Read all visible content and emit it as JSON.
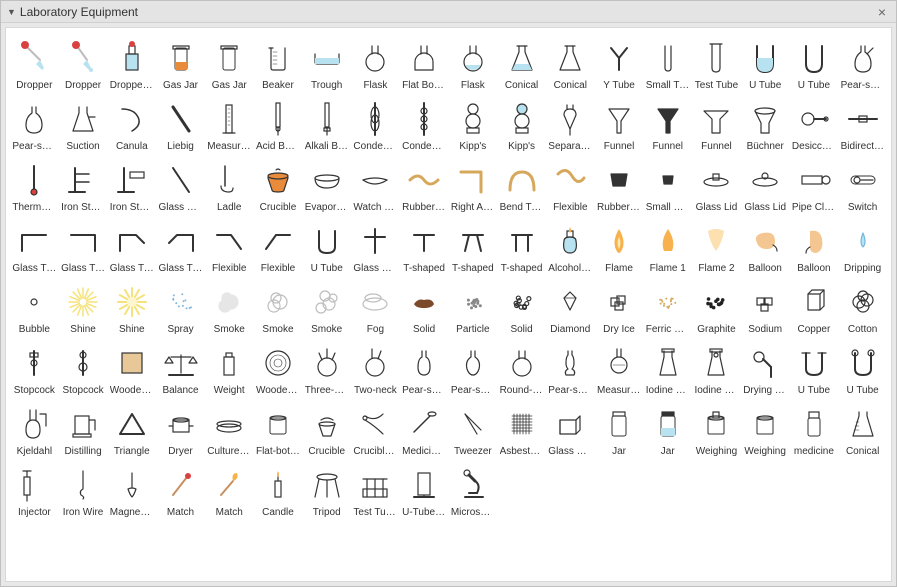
{
  "panel": {
    "title": "Laboratory Equipment"
  },
  "colors": {
    "stroke": "#333333",
    "liquid": "#b8e2f0",
    "orange": "#e88c3c",
    "red": "#d94141",
    "flame": "#f7b24d",
    "brown": "#7a4a2a",
    "tan": "#d6a85c",
    "gray": "#bdbdbd",
    "lightgray": "#e6e6e6",
    "yellow": "#f6e27a"
  },
  "items": [
    {
      "label": "Dropper",
      "icon": "dropper-red"
    },
    {
      "label": "Dropper",
      "icon": "dropper-red2"
    },
    {
      "label": "Dropper Bottle",
      "icon": "dropper-bottle"
    },
    {
      "label": "Gas Jar",
      "icon": "gas-jar"
    },
    {
      "label": "Gas Jar",
      "icon": "gas-jar-empty"
    },
    {
      "label": "Beaker",
      "icon": "beaker"
    },
    {
      "label": "Trough",
      "icon": "trough"
    },
    {
      "label": "Flask",
      "icon": "flask-round"
    },
    {
      "label": "Flat Bottom",
      "icon": "flask-flat"
    },
    {
      "label": "Flask",
      "icon": "flask-round-liq"
    },
    {
      "label": "Conical",
      "icon": "conical"
    },
    {
      "label": "Conical",
      "icon": "conical2"
    },
    {
      "label": "Y Tube",
      "icon": "y-tube"
    },
    {
      "label": "Small Tube",
      "icon": "small-tube"
    },
    {
      "label": "Test Tube",
      "icon": "test-tube"
    },
    {
      "label": "U Tube",
      "icon": "u-tube-liq"
    },
    {
      "label": "U Tube",
      "icon": "u-tube"
    },
    {
      "label": "Pear-shaped",
      "icon": "pear"
    },
    {
      "label": "Pear-shaped",
      "icon": "pear2"
    },
    {
      "label": "Suction",
      "icon": "suction"
    },
    {
      "label": "Canula",
      "icon": "canula"
    },
    {
      "label": "Liebig",
      "icon": "liebig"
    },
    {
      "label": "Measuring",
      "icon": "measuring"
    },
    {
      "label": "Acid Burette",
      "icon": "burette"
    },
    {
      "label": "Alkali Burette",
      "icon": "burette2"
    },
    {
      "label": "Condenser",
      "icon": "condenser"
    },
    {
      "label": "Condenser",
      "icon": "condenser2"
    },
    {
      "label": "Kipp's",
      "icon": "kipps"
    },
    {
      "label": "Kipp's",
      "icon": "kipps2"
    },
    {
      "label": "Separating",
      "icon": "separating"
    },
    {
      "label": "Funnel",
      "icon": "funnel"
    },
    {
      "label": "Funnel",
      "icon": "funnel-fill"
    },
    {
      "label": "Funnel",
      "icon": "funnel-wide"
    },
    {
      "label": "Büchner",
      "icon": "buchner"
    },
    {
      "label": "Desiccator",
      "icon": "desiccator"
    },
    {
      "label": "Bidirectional",
      "icon": "bidirectional"
    },
    {
      "label": "Thermometer",
      "icon": "thermometer"
    },
    {
      "label": "Iron Stand",
      "icon": "iron-stand"
    },
    {
      "label": "Iron Stand",
      "icon": "iron-stand2"
    },
    {
      "label": "Glass Rod",
      "icon": "glass-rod"
    },
    {
      "label": "Ladle",
      "icon": "ladle"
    },
    {
      "label": "Crucible",
      "icon": "crucible"
    },
    {
      "label": "Evaporating",
      "icon": "evaporating"
    },
    {
      "label": "Watch Glass",
      "icon": "watch-glass"
    },
    {
      "label": "Rubber Tube",
      "icon": "rubber-tube"
    },
    {
      "label": "Right Angle",
      "icon": "right-angle"
    },
    {
      "label": "Bend Tube",
      "icon": "bend-tube"
    },
    {
      "label": "Flexible",
      "icon": "flexible-tube"
    },
    {
      "label": "Rubber Bung",
      "icon": "bung"
    },
    {
      "label": "Small Bung",
      "icon": "bung-small"
    },
    {
      "label": "Glass Lid",
      "icon": "lid"
    },
    {
      "label": "Glass Lid",
      "icon": "lid2"
    },
    {
      "label": "Pipe Clamp",
      "icon": "pipe-clamp"
    },
    {
      "label": "Switch",
      "icon": "switch"
    },
    {
      "label": "Glass Tube",
      "icon": "glass-tube1"
    },
    {
      "label": "Glass Tube",
      "icon": "glass-tube2"
    },
    {
      "label": "Glass Tube",
      "icon": "glass-tube3"
    },
    {
      "label": "Glass Tube",
      "icon": "glass-tube4"
    },
    {
      "label": "Flexible",
      "icon": "flex-r"
    },
    {
      "label": "Flexible",
      "icon": "flex-l"
    },
    {
      "label": "U Tube",
      "icon": "u-tube2"
    },
    {
      "label": "Glass Conn",
      "icon": "glass-conn"
    },
    {
      "label": "T-shaped",
      "icon": "t-shaped"
    },
    {
      "label": "T-shaped",
      "icon": "t-shaped2"
    },
    {
      "label": "T-shaped",
      "icon": "t-shaped3"
    },
    {
      "label": "Alcohol Lamp",
      "icon": "alcohol-lamp"
    },
    {
      "label": "Flame",
      "icon": "flame"
    },
    {
      "label": "Flame 1",
      "icon": "flame1"
    },
    {
      "label": "Flame 2",
      "icon": "flame2"
    },
    {
      "label": "Balloon",
      "icon": "balloon"
    },
    {
      "label": "Balloon",
      "icon": "balloon2"
    },
    {
      "label": "Dripping",
      "icon": "drip"
    },
    {
      "label": "Bubble",
      "icon": "bubble"
    },
    {
      "label": "Shine",
      "icon": "shine"
    },
    {
      "label": "Shine",
      "icon": "shine2"
    },
    {
      "label": "Spray",
      "icon": "spray"
    },
    {
      "label": "Smoke",
      "icon": "smoke"
    },
    {
      "label": "Smoke",
      "icon": "smoke2"
    },
    {
      "label": "Smoke",
      "icon": "smoke3"
    },
    {
      "label": "Fog",
      "icon": "fog"
    },
    {
      "label": "Solid",
      "icon": "solid"
    },
    {
      "label": "Particle",
      "icon": "particle"
    },
    {
      "label": "Solid",
      "icon": "solid2"
    },
    {
      "label": "Diamond",
      "icon": "diamond"
    },
    {
      "label": "Dry Ice",
      "icon": "dry-ice"
    },
    {
      "label": "Ferric Oxide",
      "icon": "ferric"
    },
    {
      "label": "Graphite",
      "icon": "graphite"
    },
    {
      "label": "Sodium",
      "icon": "sodium"
    },
    {
      "label": "Copper",
      "icon": "copper"
    },
    {
      "label": "Cotton",
      "icon": "cotton"
    },
    {
      "label": "Stopcock",
      "icon": "stopcock"
    },
    {
      "label": "Stopcock",
      "icon": "stopcock2"
    },
    {
      "label": "Wooden Block",
      "icon": "wood-block"
    },
    {
      "label": "Balance",
      "icon": "balance"
    },
    {
      "label": "Weight",
      "icon": "weight"
    },
    {
      "label": "Wooden Disc",
      "icon": "wood-disc"
    },
    {
      "label": "Three-neck",
      "icon": "three-neck"
    },
    {
      "label": "Two-neck",
      "icon": "two-neck"
    },
    {
      "label": "Pear-shaped",
      "icon": "pear-neck"
    },
    {
      "label": "Pear-shaped",
      "icon": "pear-neck2"
    },
    {
      "label": "Round-bottom",
      "icon": "round-bottom"
    },
    {
      "label": "Pear-shaped",
      "icon": "pear-neck3"
    },
    {
      "label": "Measuring",
      "icon": "measuring2"
    },
    {
      "label": "Iodine Flask",
      "icon": "iodine"
    },
    {
      "label": "Iodine Flask",
      "icon": "iodine2"
    },
    {
      "label": "Drying Tube",
      "icon": "drying"
    },
    {
      "label": "U Tube",
      "icon": "u-tube3"
    },
    {
      "label": "U Tube",
      "icon": "u-tube4"
    },
    {
      "label": "Kjeldahl",
      "icon": "kjeldahl"
    },
    {
      "label": "Distilling",
      "icon": "distilling"
    },
    {
      "label": "Triangle",
      "icon": "triangle"
    },
    {
      "label": "Dryer",
      "icon": "dryer"
    },
    {
      "label": "Culture Dish",
      "icon": "culture"
    },
    {
      "label": "Flat-bottom",
      "icon": "flat-bottom"
    },
    {
      "label": "Crucible",
      "icon": "crucible2"
    },
    {
      "label": "Crucible Tongs",
      "icon": "tongs"
    },
    {
      "label": "Medicine Spoon",
      "icon": "spoon"
    },
    {
      "label": "Tweezer",
      "icon": "tweezer"
    },
    {
      "label": "Asbestos Net",
      "icon": "asbestos"
    },
    {
      "label": "Glass Plate",
      "icon": "glass-plate"
    },
    {
      "label": "Jar",
      "icon": "jar"
    },
    {
      "label": "Jar",
      "icon": "jar2"
    },
    {
      "label": "Weighing",
      "icon": "weighing"
    },
    {
      "label": "Weighing",
      "icon": "weighing2"
    },
    {
      "label": "medicine",
      "icon": "medicine"
    },
    {
      "label": "Conical",
      "icon": "conical3"
    },
    {
      "label": "Injector",
      "icon": "injector"
    },
    {
      "label": "Iron Wire",
      "icon": "iron-wire"
    },
    {
      "label": "Magnesium",
      "icon": "magnesium"
    },
    {
      "label": "Match",
      "icon": "match"
    },
    {
      "label": "Match",
      "icon": "match-lit"
    },
    {
      "label": "Candle",
      "icon": "candle"
    },
    {
      "label": "Tripod",
      "icon": "tripod"
    },
    {
      "label": "Test Tube Rack",
      "icon": "rack"
    },
    {
      "label": "U-Tube Stand",
      "icon": "u-stand"
    },
    {
      "label": "Microscope",
      "icon": "microscope"
    }
  ]
}
